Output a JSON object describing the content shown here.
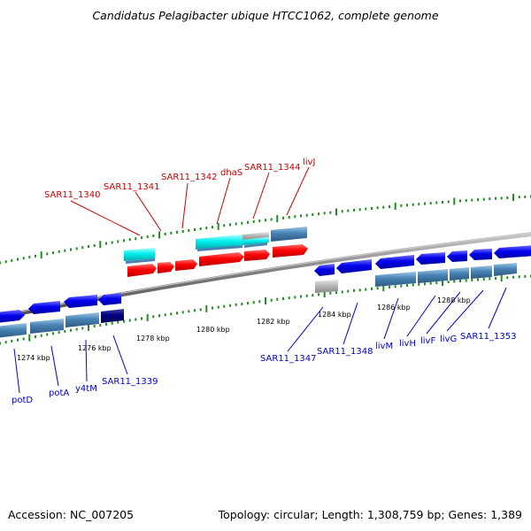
{
  "title": "Candidatus Pelagibacter ubique HTCC1062, complete genome",
  "footer": {
    "accession": "Accession: NC_007205",
    "summary": "Topology: circular; Length: 1,308,759 bp; Genes: 1,389"
  },
  "scale_labels": [
    "1274 kbp",
    "1276 kbp",
    "1278 kbp",
    "1280 kbp",
    "1282 kbp",
    "1284 kbp",
    "1286 kbp",
    "1288 kbp"
  ],
  "top_gene_labels": [
    "SAR11_1340",
    "SAR11_1341",
    "SAR11_1342",
    "dhaS",
    "SAR11_1344",
    "livJ"
  ],
  "bottom_gene_labels": [
    "potD",
    "potA",
    "y4tM",
    "SAR11_1339",
    "SAR11_1347",
    "SAR11_1348",
    "livM",
    "livH",
    "livF",
    "livG",
    "SAR11_1353"
  ],
  "colors": {
    "forward_gene": "#ff0000",
    "forward_cds": "#00e5ee",
    "reverse_gene": "#0000ee",
    "reverse_cds": "#4682b4",
    "scale_tick": "#228b22",
    "backbone": "#808080",
    "top_label": "#cc0000",
    "bottom_label": "#0000cc"
  }
}
